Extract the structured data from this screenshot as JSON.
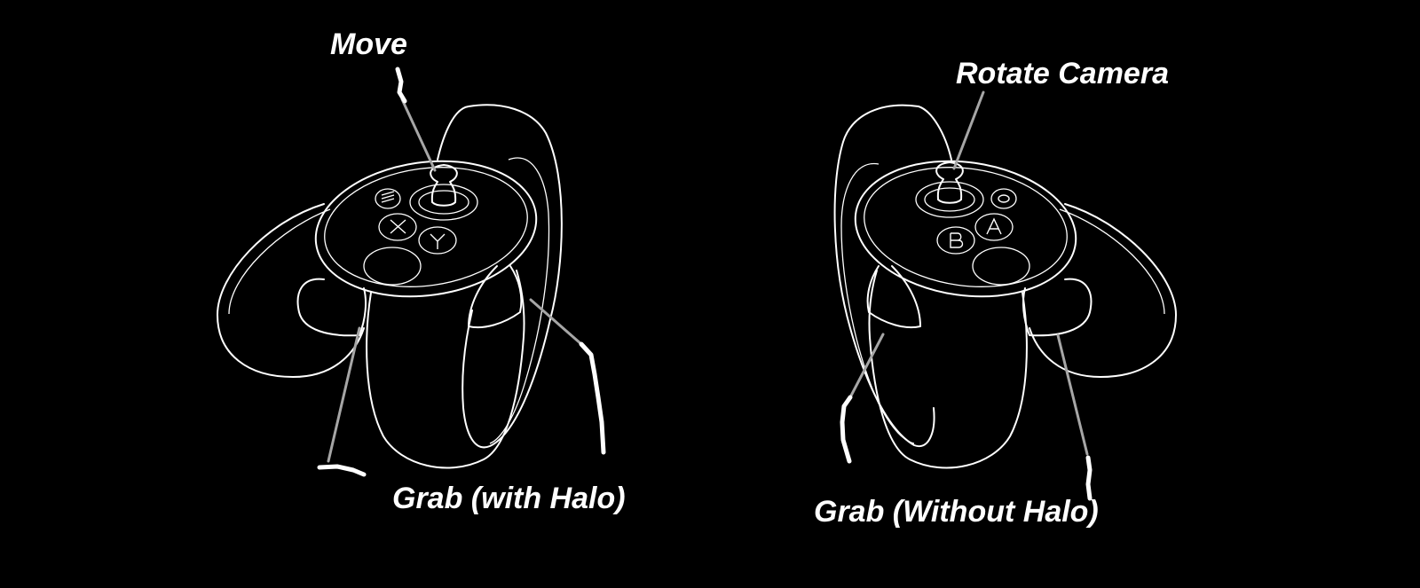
{
  "labels": {
    "move": "Move",
    "rotate_camera": "Rotate Camera",
    "grab_with_halo": "Grab (with Halo)",
    "grab_without_halo": "Grab (Without Halo)"
  },
  "left_controller": {
    "buttons": [
      "X",
      "Y"
    ]
  },
  "right_controller": {
    "buttons": [
      "A",
      "B"
    ]
  },
  "colors": {
    "background": "#000000",
    "outline": "#ffffff",
    "leader_line": "#a6a6a6"
  }
}
